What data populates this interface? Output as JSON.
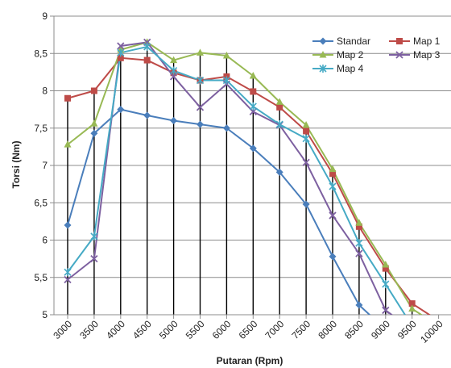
{
  "chart_data": {
    "type": "line",
    "title": "",
    "xlabel": "Putaran (Rpm)",
    "ylabel": "Torsi (Nm)",
    "x": [
      "3000",
      "3500",
      "4000",
      "4500",
      "5000",
      "5500",
      "6000",
      "6500",
      "7000",
      "7500",
      "8000",
      "8500",
      "9000",
      "9500",
      "10000"
    ],
    "y_ticks": [
      "5",
      "5,5",
      "6",
      "6,5",
      "7",
      "7,5",
      "8",
      "8,5",
      "9"
    ],
    "ylim": [
      5,
      9
    ],
    "grid": "horizontal",
    "legend_position": "top-right",
    "series": [
      {
        "name": "Standar",
        "color": "#4a7ebb",
        "marker": "diamond",
        "values": [
          6.2,
          7.43,
          7.75,
          7.67,
          7.6,
          7.55,
          7.5,
          7.23,
          6.91,
          6.48,
          5.78,
          5.13,
          4.8,
          null,
          null
        ]
      },
      {
        "name": "Map 1",
        "color": "#be4b48",
        "marker": "square",
        "values": [
          7.9,
          8.0,
          8.44,
          8.41,
          8.24,
          8.14,
          8.19,
          7.99,
          7.78,
          7.46,
          6.89,
          6.18,
          5.62,
          5.15,
          4.92
        ]
      },
      {
        "name": "Map 2",
        "color": "#98b954",
        "marker": "triangle",
        "values": [
          7.28,
          7.56,
          8.55,
          8.65,
          8.41,
          8.51,
          8.47,
          8.2,
          7.85,
          7.54,
          6.95,
          6.23,
          5.67,
          5.08,
          4.85
        ]
      },
      {
        "name": "Map 3",
        "color": "#7d60a0",
        "marker": "x",
        "values": [
          5.47,
          5.75,
          8.6,
          8.65,
          8.19,
          7.78,
          8.09,
          7.72,
          7.54,
          7.04,
          6.33,
          5.82,
          5.06,
          4.8,
          null
        ]
      },
      {
        "name": "Map 4",
        "color": "#46aac5",
        "marker": "star",
        "values": [
          5.57,
          6.05,
          8.51,
          8.59,
          8.27,
          8.14,
          8.14,
          7.79,
          7.55,
          7.36,
          6.72,
          5.96,
          5.41,
          4.85,
          null
        ]
      }
    ]
  }
}
